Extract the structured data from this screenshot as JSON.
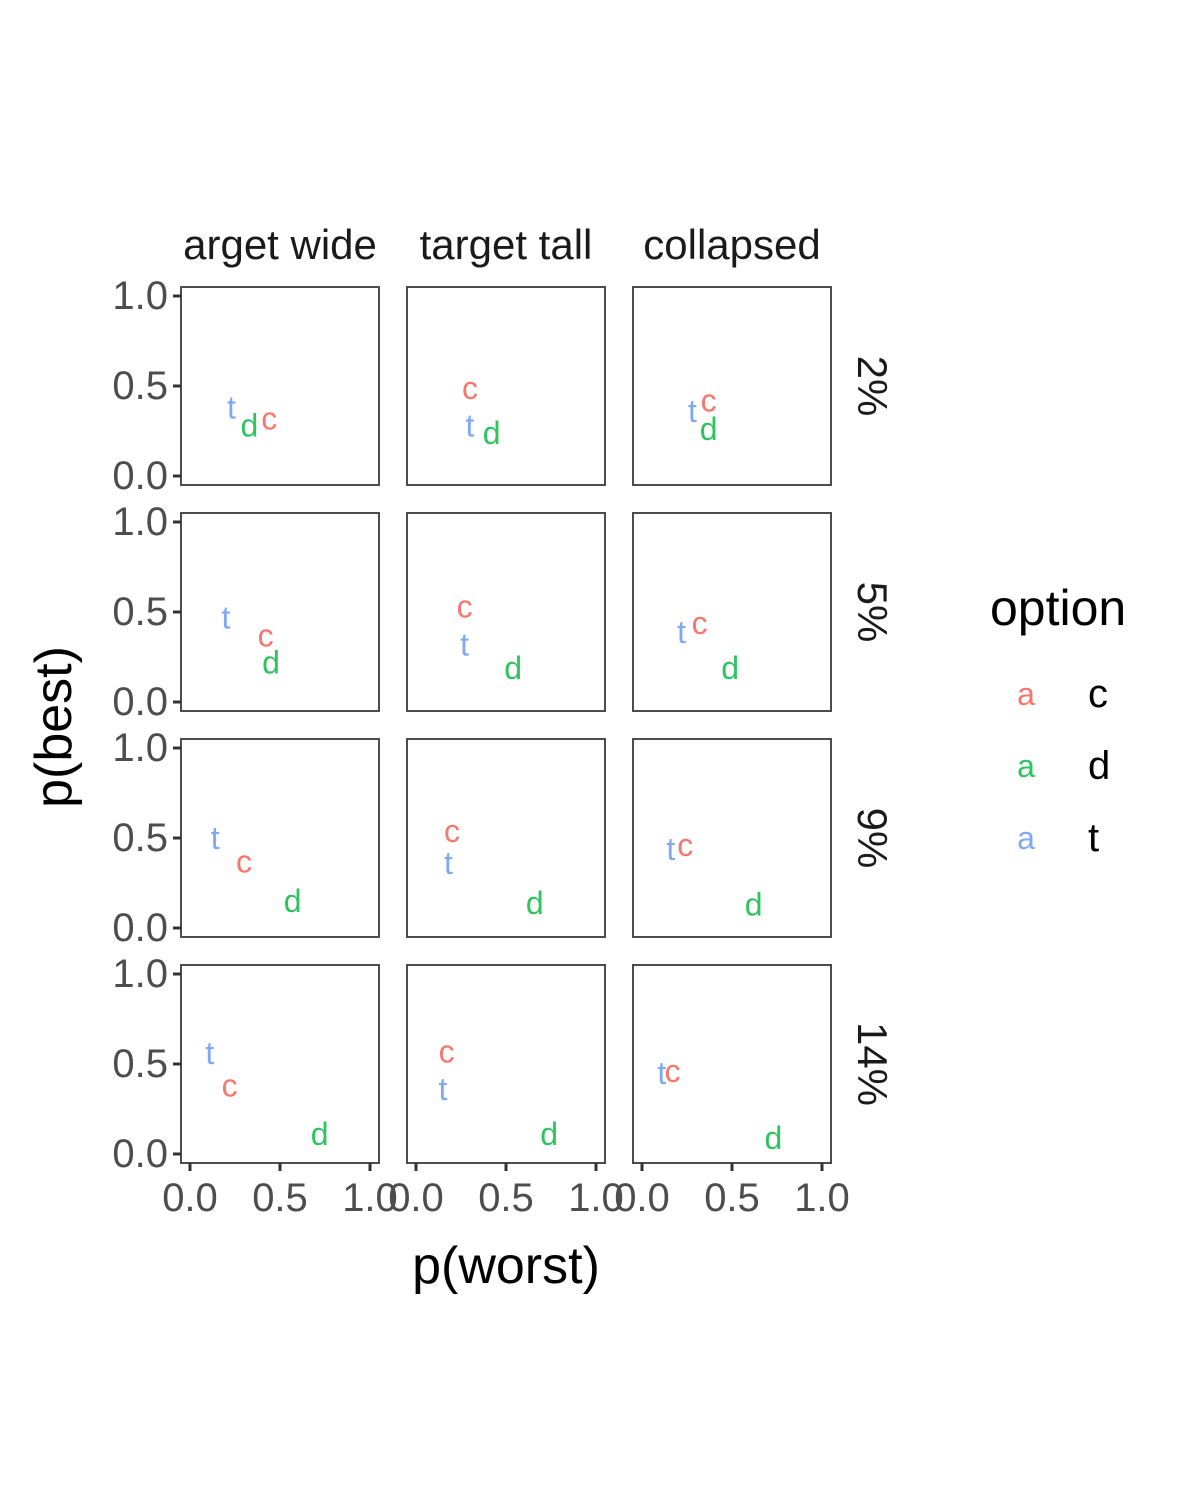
{
  "chart_data": {
    "type": "scatter",
    "xlabel": "p(worst)",
    "ylabel": "p(best)",
    "xlim": [
      0,
      1
    ],
    "ylim": [
      0,
      1
    ],
    "x_ticks": [
      "0.0",
      "0.5",
      "1.0"
    ],
    "y_ticks": [
      "0.0",
      "0.5",
      "1.0"
    ],
    "facet_columns": [
      "arget wide",
      "target tall",
      "collapsed"
    ],
    "facet_rows": [
      "2%",
      "5%",
      "9%",
      "14%"
    ],
    "grid": false,
    "legend": {
      "title": "option",
      "placement": "right",
      "key_glyph": "a",
      "entries": [
        {
          "label": "c",
          "color": "#F8766D"
        },
        {
          "label": "d",
          "color": "#2EC45E"
        },
        {
          "label": "t",
          "color": "#7FA8F5"
        }
      ]
    },
    "panels": [
      {
        "row": 0,
        "col": 0,
        "points": [
          {
            "option": "t",
            "x": 0.23,
            "y": 0.38
          },
          {
            "option": "d",
            "x": 0.33,
            "y": 0.28
          },
          {
            "option": "c",
            "x": 0.44,
            "y": 0.32
          }
        ]
      },
      {
        "row": 0,
        "col": 1,
        "points": [
          {
            "option": "c",
            "x": 0.3,
            "y": 0.49
          },
          {
            "option": "t",
            "x": 0.3,
            "y": 0.28
          },
          {
            "option": "d",
            "x": 0.42,
            "y": 0.24
          }
        ]
      },
      {
        "row": 0,
        "col": 2,
        "points": [
          {
            "option": "t",
            "x": 0.28,
            "y": 0.36
          },
          {
            "option": "c",
            "x": 0.37,
            "y": 0.42
          },
          {
            "option": "d",
            "x": 0.37,
            "y": 0.26
          }
        ]
      },
      {
        "row": 1,
        "col": 0,
        "points": [
          {
            "option": "t",
            "x": 0.2,
            "y": 0.47
          },
          {
            "option": "c",
            "x": 0.42,
            "y": 0.37
          },
          {
            "option": "d",
            "x": 0.45,
            "y": 0.22
          }
        ]
      },
      {
        "row": 1,
        "col": 1,
        "points": [
          {
            "option": "c",
            "x": 0.27,
            "y": 0.53
          },
          {
            "option": "t",
            "x": 0.27,
            "y": 0.32
          },
          {
            "option": "d",
            "x": 0.54,
            "y": 0.19
          }
        ]
      },
      {
        "row": 1,
        "col": 2,
        "points": [
          {
            "option": "t",
            "x": 0.22,
            "y": 0.39
          },
          {
            "option": "c",
            "x": 0.32,
            "y": 0.44
          },
          {
            "option": "d",
            "x": 0.49,
            "y": 0.19
          }
        ]
      },
      {
        "row": 2,
        "col": 0,
        "points": [
          {
            "option": "t",
            "x": 0.14,
            "y": 0.5
          },
          {
            "option": "c",
            "x": 0.3,
            "y": 0.37
          },
          {
            "option": "d",
            "x": 0.57,
            "y": 0.15
          }
        ]
      },
      {
        "row": 2,
        "col": 1,
        "points": [
          {
            "option": "c",
            "x": 0.2,
            "y": 0.54
          },
          {
            "option": "t",
            "x": 0.18,
            "y": 0.36
          },
          {
            "option": "d",
            "x": 0.66,
            "y": 0.14
          }
        ]
      },
      {
        "row": 2,
        "col": 2,
        "points": [
          {
            "option": "t",
            "x": 0.16,
            "y": 0.44
          },
          {
            "option": "c",
            "x": 0.24,
            "y": 0.46
          },
          {
            "option": "d",
            "x": 0.62,
            "y": 0.13
          }
        ]
      },
      {
        "row": 3,
        "col": 0,
        "points": [
          {
            "option": "t",
            "x": 0.11,
            "y": 0.56
          },
          {
            "option": "c",
            "x": 0.22,
            "y": 0.38
          },
          {
            "option": "d",
            "x": 0.72,
            "y": 0.11
          }
        ]
      },
      {
        "row": 3,
        "col": 1,
        "points": [
          {
            "option": "c",
            "x": 0.17,
            "y": 0.57
          },
          {
            "option": "t",
            "x": 0.15,
            "y": 0.36
          },
          {
            "option": "d",
            "x": 0.74,
            "y": 0.11
          }
        ]
      },
      {
        "row": 3,
        "col": 2,
        "points": [
          {
            "option": "t",
            "x": 0.11,
            "y": 0.45
          },
          {
            "option": "c",
            "x": 0.17,
            "y": 0.46
          },
          {
            "option": "d",
            "x": 0.73,
            "y": 0.09
          }
        ]
      }
    ]
  }
}
